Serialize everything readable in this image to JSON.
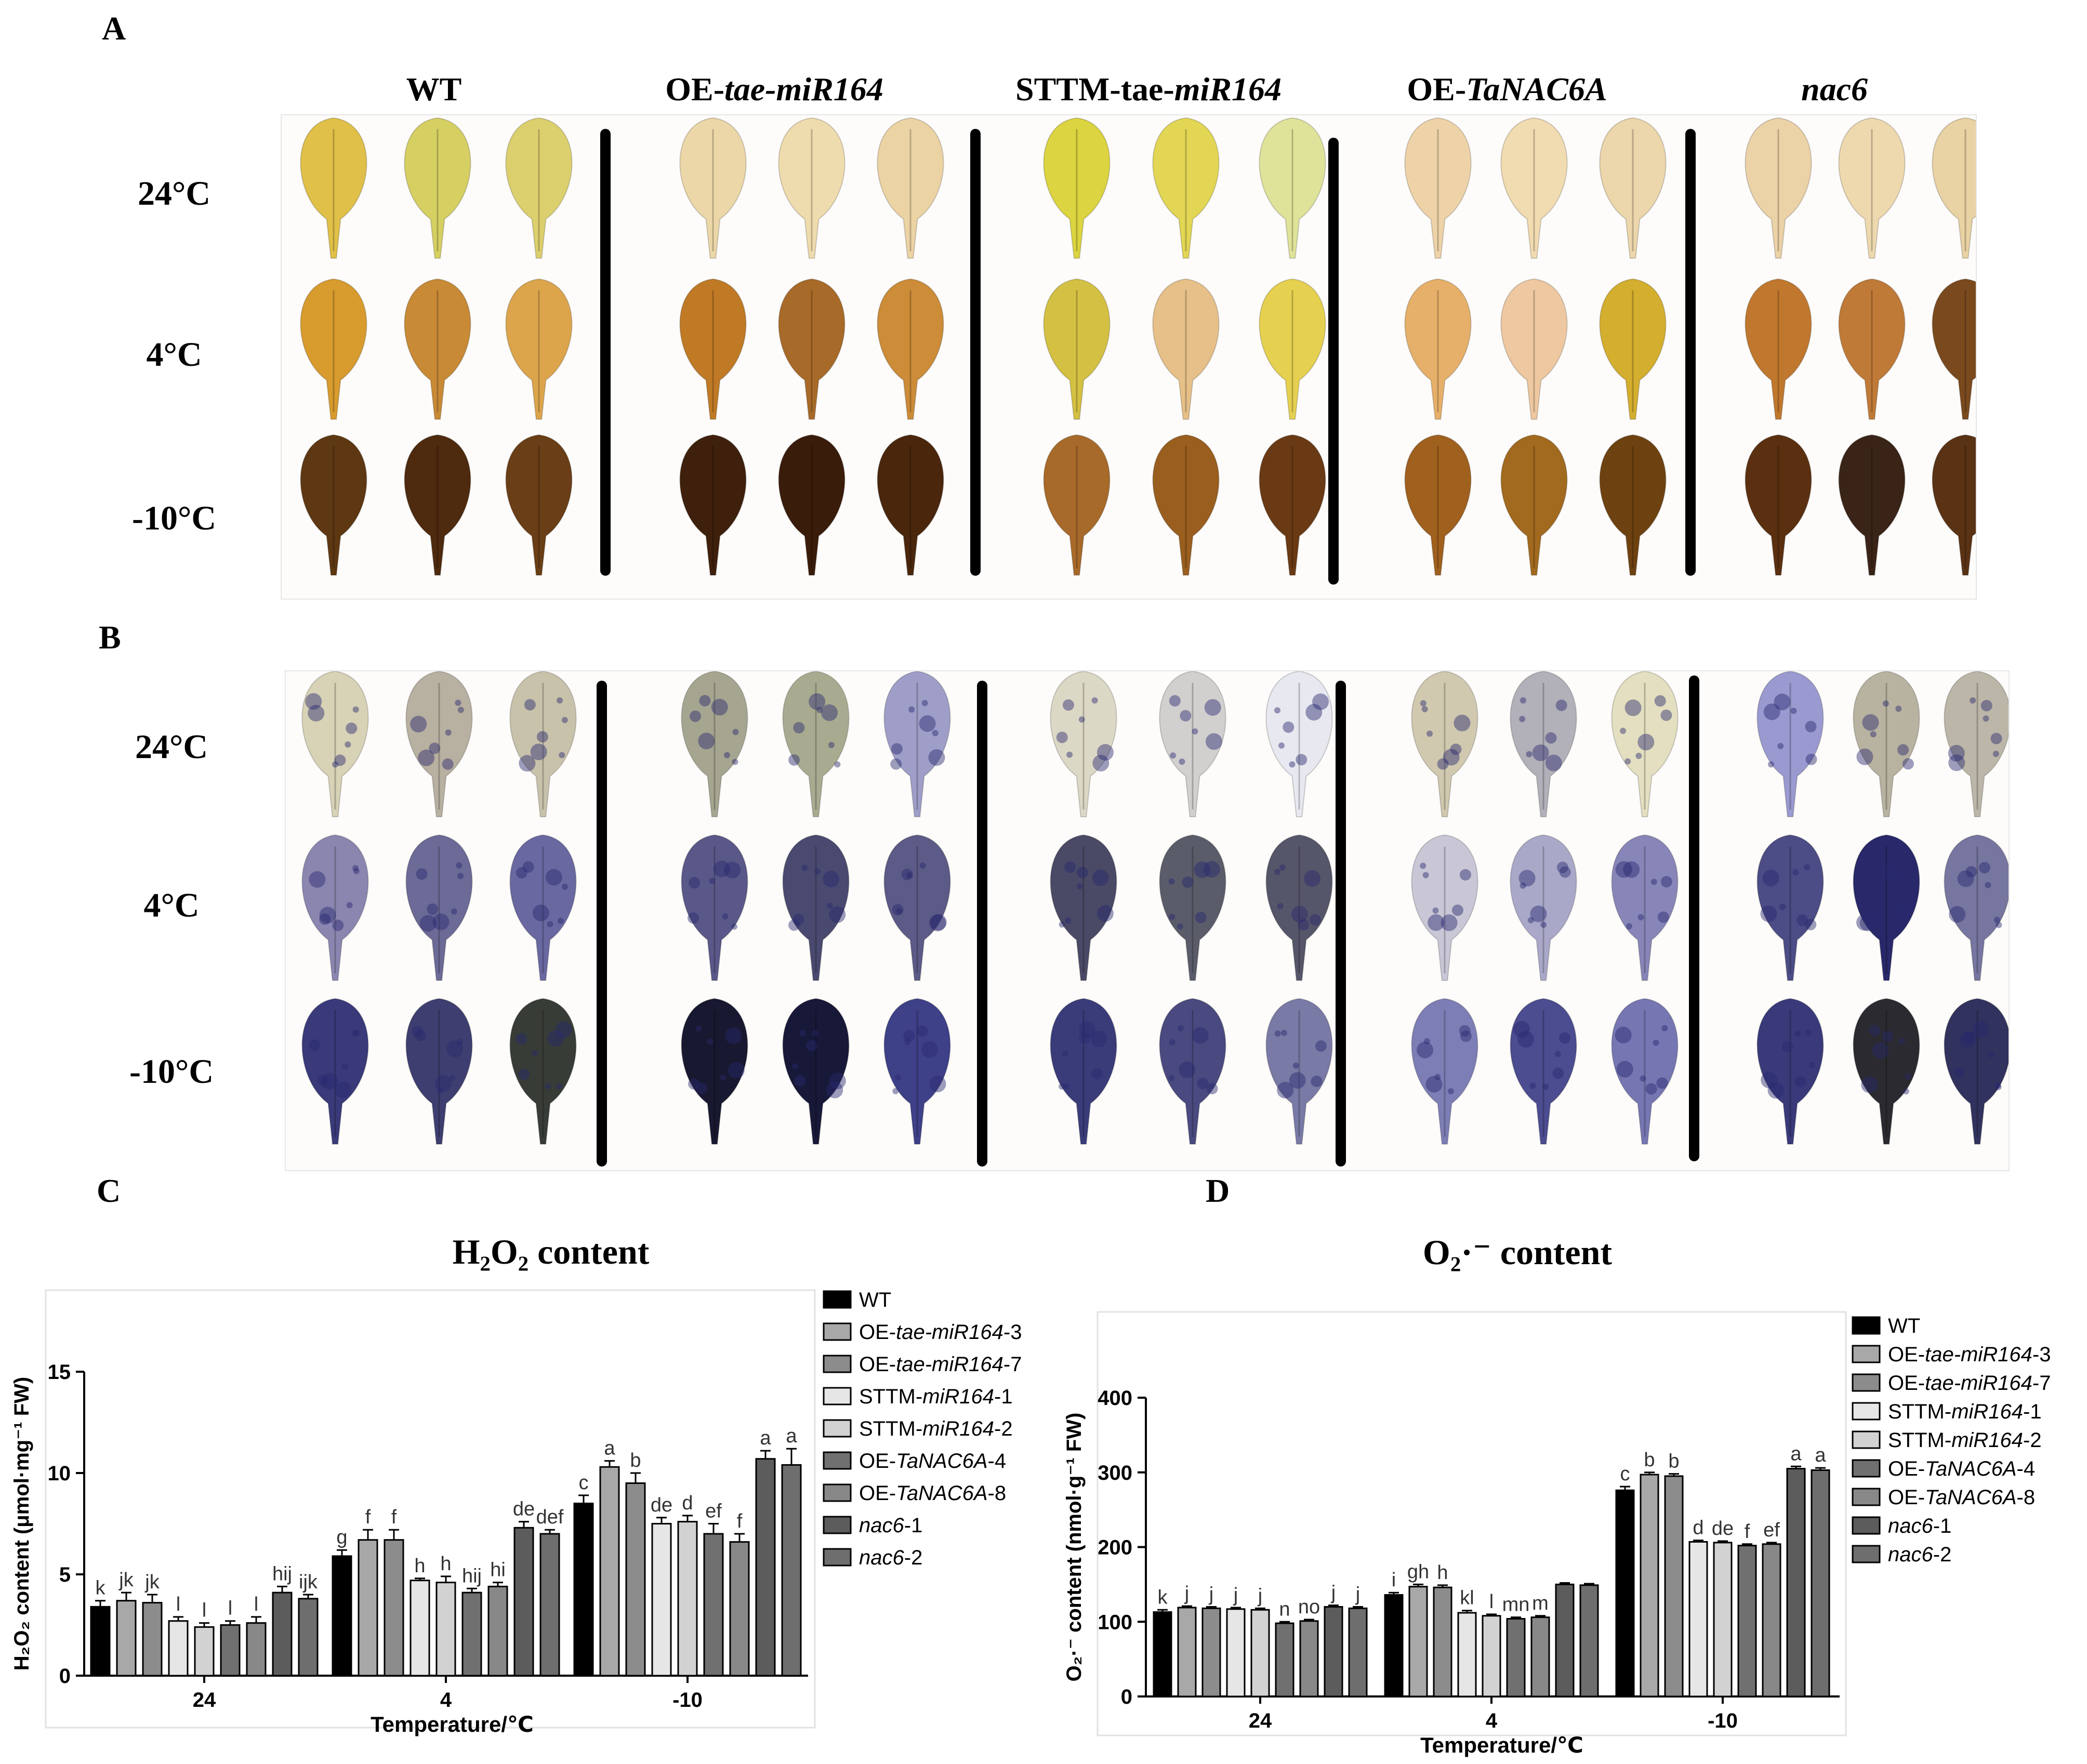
{
  "panels": {
    "a": {
      "letter": "A"
    },
    "b": {
      "letter": "B"
    },
    "c": {
      "letter": "C"
    },
    "d": {
      "letter": "D"
    }
  },
  "genotypes": [
    {
      "prefix": "WT",
      "italic": ""
    },
    {
      "prefix": "OE-",
      "italic": "tae-miR164"
    },
    {
      "prefix": "STTM-tae-",
      "italic": "miR164"
    },
    {
      "prefix": "OE-",
      "italic": "TaNAC6A"
    },
    {
      "prefix": "",
      "italic": "nac6"
    }
  ],
  "temperatures": [
    "24°C",
    "4°C",
    "-10°C"
  ],
  "leaf_colors": {
    "dab": [
      [
        "#e0c048",
        "#d6cf62",
        "#dcd06e",
        "#ecd7a8",
        "#efdcae",
        "#ecd3a4",
        "#dcd440",
        "#e2d654",
        "#dfe39a",
        "#efd3a8",
        "#f1dbb1",
        "#ecd6ab",
        "#ecd2a7",
        "#eed8ae",
        "#e9d2a3"
      ],
      [
        "#d89b2e",
        "#c88a35",
        "#dca54c",
        "#c07a26",
        "#a86a28",
        "#cc8c38",
        "#d4c042",
        "#e6c088",
        "#e6d050",
        "#e6b06a",
        "#eec8a0",
        "#d4ae2e",
        "#c0782e",
        "#c07a38",
        "#7a4a1e"
      ],
      [
        "#5e3812",
        "#4e2a0e",
        "#6a3e16",
        "#3e200c",
        "#3a1c0a",
        "#4a260c",
        "#a86a2a",
        "#9a5e1e",
        "#6a3a14",
        "#a0601e",
        "#a26a1e",
        "#6e4210",
        "#5a3010",
        "#3a2418",
        "#5a3214"
      ]
    ],
    "nbt": [
      [
        "#d8d2b6",
        "#b8b0a0",
        "#c9c2ab",
        "#a6a590",
        "#a9ab90",
        "#9e9ec8",
        "#dcd8c6",
        "#d2cfcf",
        "#e8e8f0",
        "#d0c9b0",
        "#b2b0b8",
        "#e3dfc0",
        "#9a9ad0",
        "#b8b2a0",
        "#bcb6a8"
      ],
      [
        "#8a86b0",
        "#6c6a96",
        "#6a68a0",
        "#5a5888",
        "#4a4a70",
        "#5c5a86",
        "#4a4a66",
        "#5a5c6a",
        "#56566a",
        "#c9c6d6",
        "#a9a8c8",
        "#8886b8",
        "#4c4c86",
        "#28286a",
        "#7676a0"
      ],
      [
        "#3a3a7a",
        "#3e3e70",
        "#383c36",
        "#181830",
        "#181838",
        "#3e4088",
        "#3a3c7a",
        "#4a4a80",
        "#7a7aa6",
        "#7e7eb6",
        "#4c4c90",
        "#7676b2",
        "#3a3a7a",
        "#2a2a30",
        "#32325e"
      ]
    ]
  },
  "chart_data": [
    {
      "type": "bar",
      "title": "H₂O₂ content",
      "ylabel": "H₂O₂ content (μmol·mg⁻¹ FW)",
      "xlabel": "Temperature/℃",
      "categories": [
        "24",
        "4",
        "-10"
      ],
      "ylim": [
        0,
        15
      ],
      "yticks": [
        0,
        5,
        10,
        15
      ],
      "series": [
        {
          "name": "WT",
          "prefix": "WT",
          "italic": "",
          "suffix": "",
          "color": "#000000",
          "values": [
            3.4,
            5.9,
            8.5
          ],
          "errors": [
            0.3,
            0.3,
            0.4
          ],
          "letters": [
            "k",
            "g",
            "c"
          ]
        },
        {
          "name": "OE-tae-miR164-3",
          "prefix": "OE-",
          "italic": "tae-miR164",
          "suffix": "-3",
          "color": "#a8a8a8",
          "values": [
            3.7,
            6.7,
            10.3
          ],
          "errors": [
            0.4,
            0.5,
            0.3
          ],
          "letters": [
            "jk",
            "f",
            "a"
          ]
        },
        {
          "name": "OE-tae-miR164-7",
          "prefix": "OE-",
          "italic": "tae-miR164",
          "suffix": "-7",
          "color": "#8c8c8c",
          "values": [
            3.6,
            6.7,
            9.5
          ],
          "errors": [
            0.4,
            0.5,
            0.5
          ],
          "letters": [
            "jk",
            "f",
            "b"
          ]
        },
        {
          "name": "STTM-miR164-1",
          "prefix": "STTM-",
          "italic": "miR164",
          "suffix": "-1",
          "color": "#e6e6e6",
          "values": [
            2.7,
            4.7,
            7.5
          ],
          "errors": [
            0.2,
            0.1,
            0.3
          ],
          "letters": [
            "l",
            "h",
            "de"
          ]
        },
        {
          "name": "STTM-miR164-2",
          "prefix": "STTM-",
          "italic": "miR164",
          "suffix": "-2",
          "color": "#d2d2d2",
          "values": [
            2.4,
            4.6,
            7.6
          ],
          "errors": [
            0.2,
            0.3,
            0.3
          ],
          "letters": [
            "l",
            "h",
            "d"
          ]
        },
        {
          "name": "OE-TaNAC6A-4",
          "prefix": "OE-",
          "italic": "TaNAC6A",
          "suffix": "-4",
          "color": "#707070",
          "values": [
            2.5,
            4.1,
            7.0
          ],
          "errors": [
            0.2,
            0.2,
            0.5
          ],
          "letters": [
            "l",
            "hij",
            "ef"
          ]
        },
        {
          "name": "OE-TaNAC6A-8",
          "prefix": "OE-",
          "italic": "TaNAC6A",
          "suffix": "-8",
          "color": "#888888",
          "values": [
            2.6,
            4.4,
            6.6
          ],
          "errors": [
            0.3,
            0.2,
            0.4
          ],
          "letters": [
            "l",
            "hi",
            "f"
          ]
        },
        {
          "name": "nac6-1",
          "prefix": "",
          "italic": "nac6",
          "suffix": "-1",
          "color": "#5c5c5c",
          "values": [
            4.1,
            7.3,
            10.7
          ],
          "errors": [
            0.3,
            0.3,
            0.4
          ],
          "letters": [
            "hij",
            "de",
            "a"
          ]
        },
        {
          "name": "nac6-2",
          "prefix": "",
          "italic": "nac6",
          "suffix": "-2",
          "color": "#6e6e6e",
          "values": [
            3.8,
            7.0,
            10.4
          ],
          "errors": [
            0.2,
            0.2,
            0.8
          ],
          "letters": [
            "ijk",
            "def",
            "a"
          ]
        }
      ]
    },
    {
      "type": "bar",
      "title": "O₂·⁻ content",
      "ylabel": "O₂·⁻ content (nmol·g⁻¹ FW)",
      "xlabel": "Temperature/℃",
      "categories": [
        "24",
        "4",
        "-10"
      ],
      "ylim": [
        0,
        400
      ],
      "yticks": [
        0,
        100,
        200,
        300,
        400
      ],
      "series": [
        {
          "name": "WT",
          "prefix": "WT",
          "italic": "",
          "suffix": "",
          "color": "#000000",
          "values": [
            113,
            136,
            276
          ],
          "errors": [
            3,
            3,
            5
          ],
          "letters": [
            "k",
            "i",
            "c"
          ]
        },
        {
          "name": "OE-tae-miR164-3",
          "prefix": "OE-",
          "italic": "tae-miR164",
          "suffix": "-3",
          "color": "#a8a8a8",
          "values": [
            119,
            147,
            297
          ],
          "errors": [
            2,
            3,
            3
          ],
          "letters": [
            "j",
            "gh",
            "b"
          ]
        },
        {
          "name": "OE-tae-miR164-7",
          "prefix": "OE-",
          "italic": "tae-miR164",
          "suffix": "-7",
          "color": "#8c8c8c",
          "values": [
            118,
            146,
            295
          ],
          "errors": [
            2,
            3,
            3
          ],
          "letters": [
            "j",
            "h",
            "b"
          ]
        },
        {
          "name": "STTM-miR164-1",
          "prefix": "STTM-",
          "italic": "miR164",
          "suffix": "-1",
          "color": "#e6e6e6",
          "values": [
            117,
            112,
            207
          ],
          "errors": [
            2,
            3,
            2
          ],
          "letters": [
            "j",
            "kl",
            "d"
          ]
        },
        {
          "name": "STTM-miR164-2",
          "prefix": "STTM-",
          "italic": "miR164",
          "suffix": "-2",
          "color": "#d2d2d2",
          "values": [
            116,
            108,
            206
          ],
          "errors": [
            2,
            2,
            2
          ],
          "letters": [
            "j",
            "l",
            "de"
          ]
        },
        {
          "name": "OE-TaNAC6A-4",
          "prefix": "OE-",
          "italic": "TaNAC6A",
          "suffix": "-4",
          "color": "#707070",
          "values": [
            98,
            104,
            202
          ],
          "errors": [
            2,
            2,
            2
          ],
          "letters": [
            "n",
            "mn",
            "f"
          ]
        },
        {
          "name": "OE-TaNAC6A-8",
          "prefix": "OE-",
          "italic": "TaNAC6A",
          "suffix": "-8",
          "color": "#888888",
          "values": [
            101,
            106,
            204
          ],
          "errors": [
            2,
            2,
            2
          ],
          "letters": [
            "no",
            "m",
            "ef"
          ]
        },
        {
          "name": "nac6-1",
          "prefix": "",
          "italic": "nac6",
          "suffix": "-1",
          "color": "#5c5c5c",
          "values": [
            120,
            150,
            305
          ],
          "errors": [
            2,
            2,
            3
          ],
          "letters": [
            "j",
            "",
            "a"
          ]
        },
        {
          "name": "nac6-2",
          "prefix": "",
          "italic": "nac6",
          "suffix": "-2",
          "color": "#6e6e6e",
          "values": [
            118,
            149,
            303
          ],
          "errors": [
            2,
            2,
            3
          ],
          "letters": [
            "j",
            "",
            "a"
          ]
        }
      ]
    }
  ]
}
